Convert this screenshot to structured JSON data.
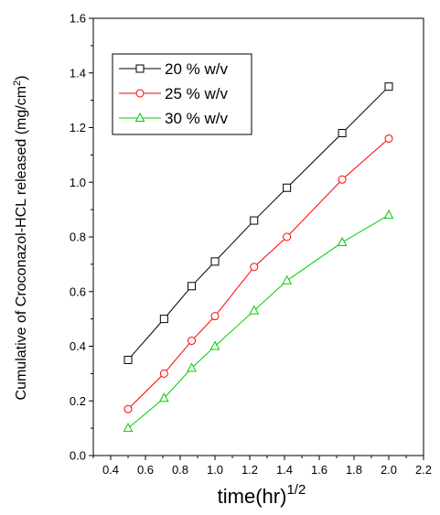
{
  "chart_data": {
    "type": "line",
    "xlabel": "time(hr)",
    "xlabel_superscript": "1/2",
    "ylabel": "Cumulative of Croconazol-HCL released (mg/cm",
    "ylabel_superscript": "2",
    "ylabel_suffix": ")",
    "xlim": [
      0.3,
      2.2
    ],
    "ylim": [
      0.0,
      1.6
    ],
    "xticks": [
      "0.4",
      "0.6",
      "0.8",
      "1.0",
      "1.2",
      "1.4",
      "1.6",
      "1.8",
      "2.0",
      "2.2"
    ],
    "yticks": [
      "0.0",
      "0.2",
      "0.4",
      "0.6",
      "0.8",
      "1.0",
      "1.2",
      "1.4",
      "1.6"
    ],
    "x": [
      0.5,
      0.707,
      0.866,
      1.0,
      1.225,
      1.414,
      1.732,
      2.0
    ],
    "legend_position": "top-left",
    "grid": false,
    "series": [
      {
        "name": "20 % w/v",
        "marker": "square",
        "color": "#000000",
        "values": [
          0.35,
          0.5,
          0.62,
          0.71,
          0.86,
          0.98,
          1.18,
          1.35
        ]
      },
      {
        "name": "25 % w/v",
        "marker": "circle",
        "color": "#ff0000",
        "values": [
          0.17,
          0.3,
          0.42,
          0.51,
          0.69,
          0.8,
          1.01,
          1.16
        ]
      },
      {
        "name": "30 % w/v",
        "marker": "triangle",
        "color": "#00cc00",
        "values": [
          0.1,
          0.21,
          0.32,
          0.4,
          0.53,
          0.64,
          0.78,
          0.88
        ]
      }
    ]
  }
}
